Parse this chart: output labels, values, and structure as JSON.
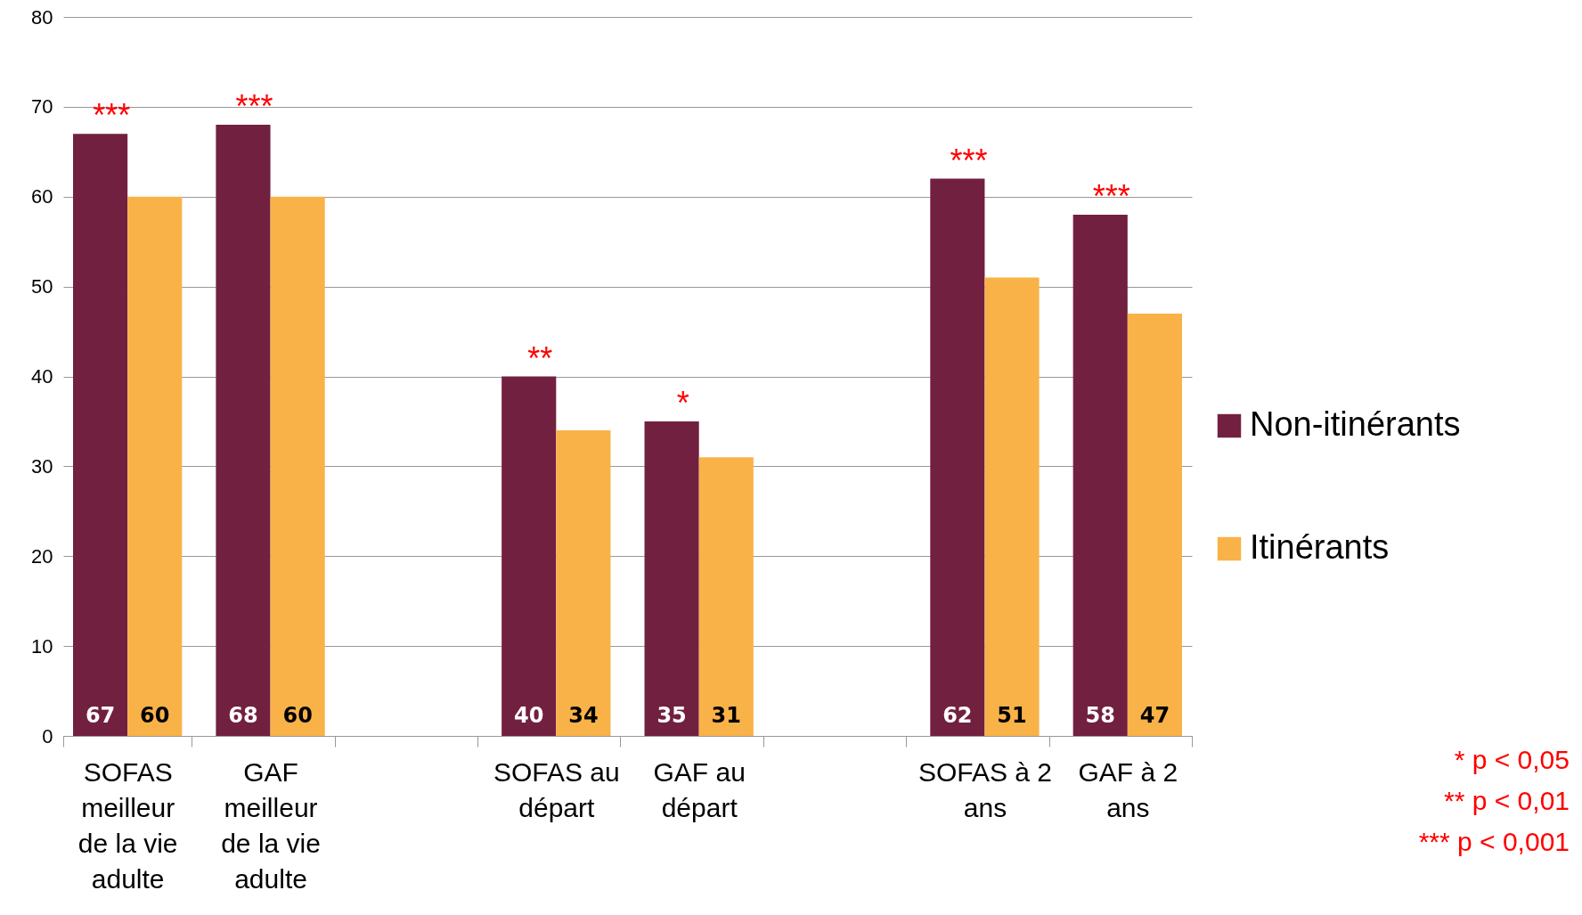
{
  "chart_data": {
    "type": "bar",
    "categories": [
      "SOFAS meilleur de la vie adulte",
      "GAF meilleur de la vie adulte",
      null,
      "SOFAS au départ",
      "GAF au départ",
      null,
      "SOFAS à 2 ans",
      "GAF à 2 ans"
    ],
    "series": [
      {
        "name": "Non-itinérants",
        "color": "#722040",
        "values": [
          67,
          68,
          null,
          40,
          35,
          null,
          62,
          58
        ]
      },
      {
        "name": "Itinérants",
        "color": "#f9b248",
        "values": [
          60,
          60,
          null,
          34,
          31,
          null,
          51,
          47
        ]
      }
    ],
    "ylim": [
      0,
      80
    ],
    "yticks": [
      0,
      10,
      20,
      30,
      40,
      50,
      60,
      70,
      80
    ],
    "grid": "y",
    "legend": "right",
    "data_labels": true,
    "annotations": [
      {
        "text": "***",
        "x": "SOFAS meilleur de la vie adulte",
        "y": 67
      },
      {
        "text": "***",
        "x": "GAF meilleur de la vie adulte",
        "y": 68
      },
      {
        "text": "**",
        "x": "SOFAS au départ",
        "y": 40
      },
      {
        "text": "*",
        "x": "GAF au départ",
        "y": 35
      },
      {
        "text": "***",
        "x": "SOFAS à 2 ans",
        "y": 62
      },
      {
        "text": "***",
        "x": "GAF à 2 ans",
        "y": 58
      },
      "*  p < 0,05",
      "** p < 0,01",
      "*** p < 0,001"
    ]
  }
}
